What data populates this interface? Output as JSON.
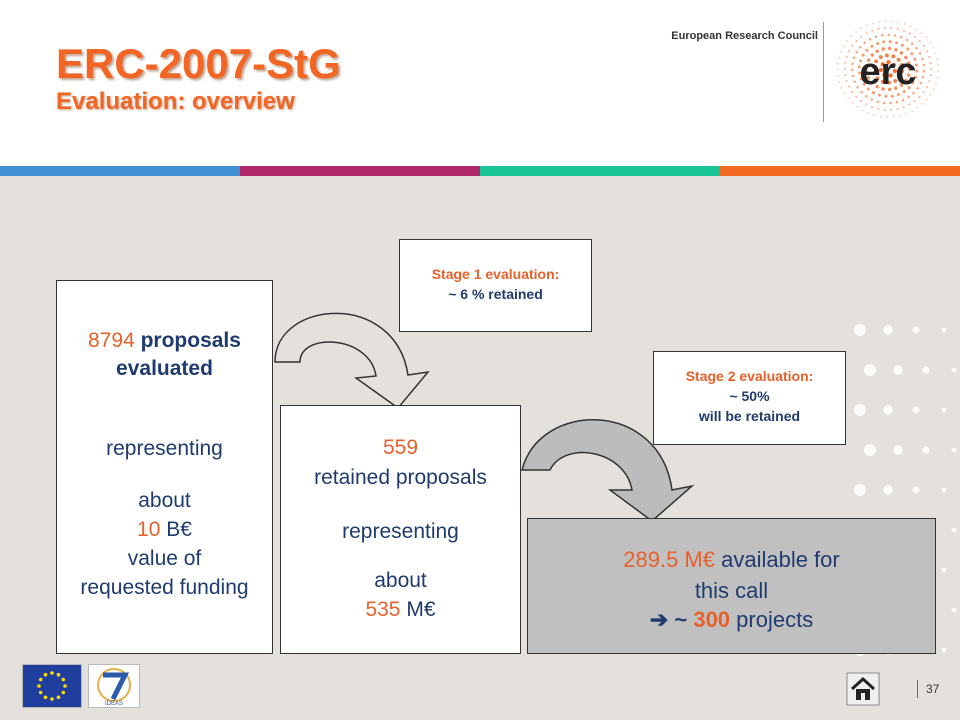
{
  "header": {
    "title": "ERC-2007-StG",
    "subtitle": "Evaluation: overview",
    "organization": "European Research Council",
    "logo_text": "erc"
  },
  "colors": {
    "accent_orange": "#f26522",
    "text_blue": "#1f3b6e",
    "band_blue": "#3f8fd2",
    "band_magenta": "#b0286a",
    "band_teal": "#19c497",
    "band_orange": "#f26a21",
    "background": "#e4e0dc"
  },
  "proposals_box": {
    "count": "8794",
    "count_label": "proposals",
    "count_label2": "evaluated",
    "representing": "representing",
    "about": "about",
    "amount": "10",
    "amount_unit": "B€",
    "value_of": "value of",
    "requested_funding": "requested funding"
  },
  "retained_box": {
    "count": "559",
    "label": "retained proposals",
    "representing": "representing",
    "about": "about",
    "amount": "535",
    "amount_unit": "M€"
  },
  "available_box": {
    "amount": "289.5 M€",
    "label": "available for",
    "label2": "this call",
    "arrow_symbol": "➔",
    "approx": "~",
    "projects_count": "300",
    "projects_label": "projects"
  },
  "stage1": {
    "title": "Stage 1 evaluation:",
    "detail": "~ 6 % retained"
  },
  "stage2": {
    "title": "Stage 2 evaluation:",
    "detail": "~ 50%",
    "detail2": "will be retained"
  },
  "footer": {
    "page_number": "37",
    "home_icon": "home-icon",
    "fp7_text": "IDEAS"
  }
}
